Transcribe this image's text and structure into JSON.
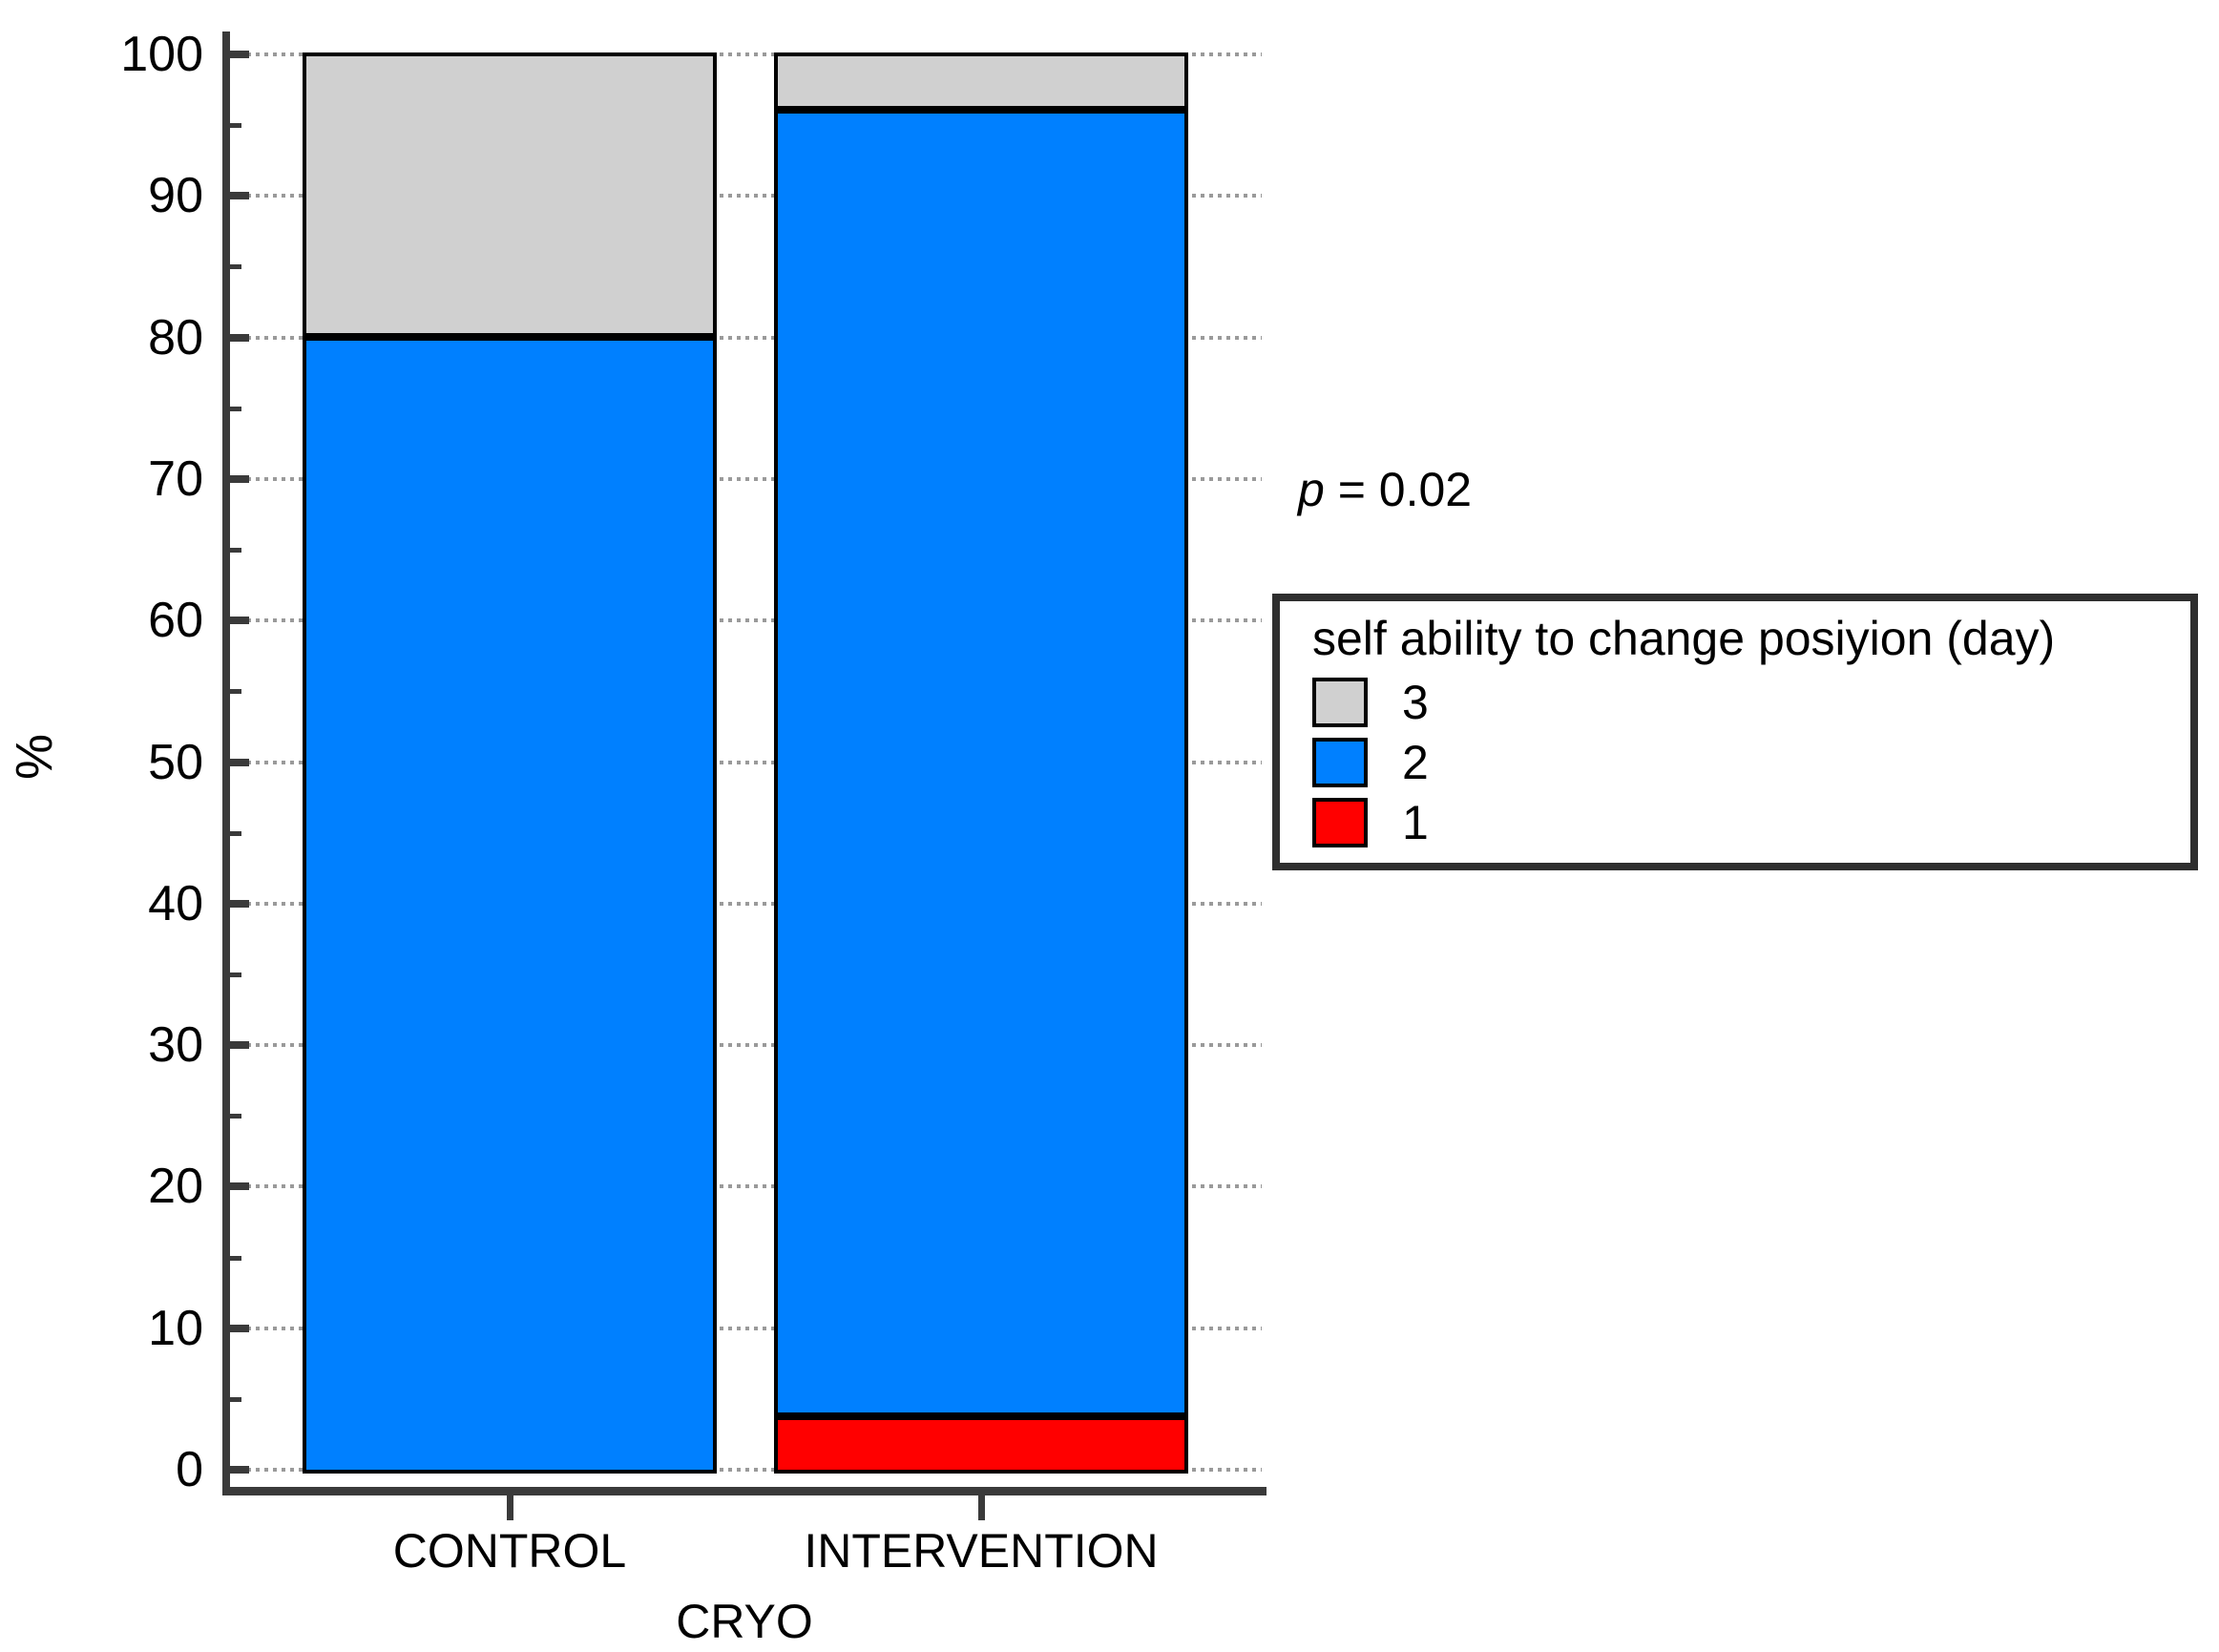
{
  "chart_data": {
    "type": "bar",
    "stacked": true,
    "orientation": "vertical",
    "categories": [
      "CONTROL",
      "INTERVENTION"
    ],
    "series": [
      {
        "name": "3",
        "color": "#d0d0d0",
        "values": [
          20,
          4
        ]
      },
      {
        "name": "2",
        "color": "#0080ff",
        "values": [
          80,
          92
        ]
      },
      {
        "name": "1",
        "color": "#ff0000",
        "values": [
          0,
          4
        ]
      }
    ],
    "title": "",
    "xlabel": "CRYO",
    "ylabel": "%",
    "ylim": [
      0,
      100
    ],
    "ytick_major_step": 10,
    "ytick_minor_step": 5,
    "ytick_labels": [
      "0",
      "10",
      "20",
      "30",
      "40",
      "50",
      "60",
      "70",
      "80",
      "90",
      "100"
    ],
    "grid": {
      "horizontal_major": true,
      "style": "dotted",
      "color": "#9a9a9a"
    },
    "legend": {
      "title": "self ability to change posiyion (day)",
      "position": "right",
      "entries": [
        {
          "label": "3",
          "color": "#d0d0d0"
        },
        {
          "label": "2",
          "color": "#0080ff"
        },
        {
          "label": "1",
          "color": "#ff0000"
        }
      ]
    },
    "annotation": {
      "italic": "p",
      "text": " = 0.02"
    }
  },
  "colors": {
    "axis": "#3a3a3a",
    "bar_border": "#000000",
    "background": "#ffffff",
    "legend_border": "#2e2e2e",
    "gridline": "#9a9a9a"
  }
}
